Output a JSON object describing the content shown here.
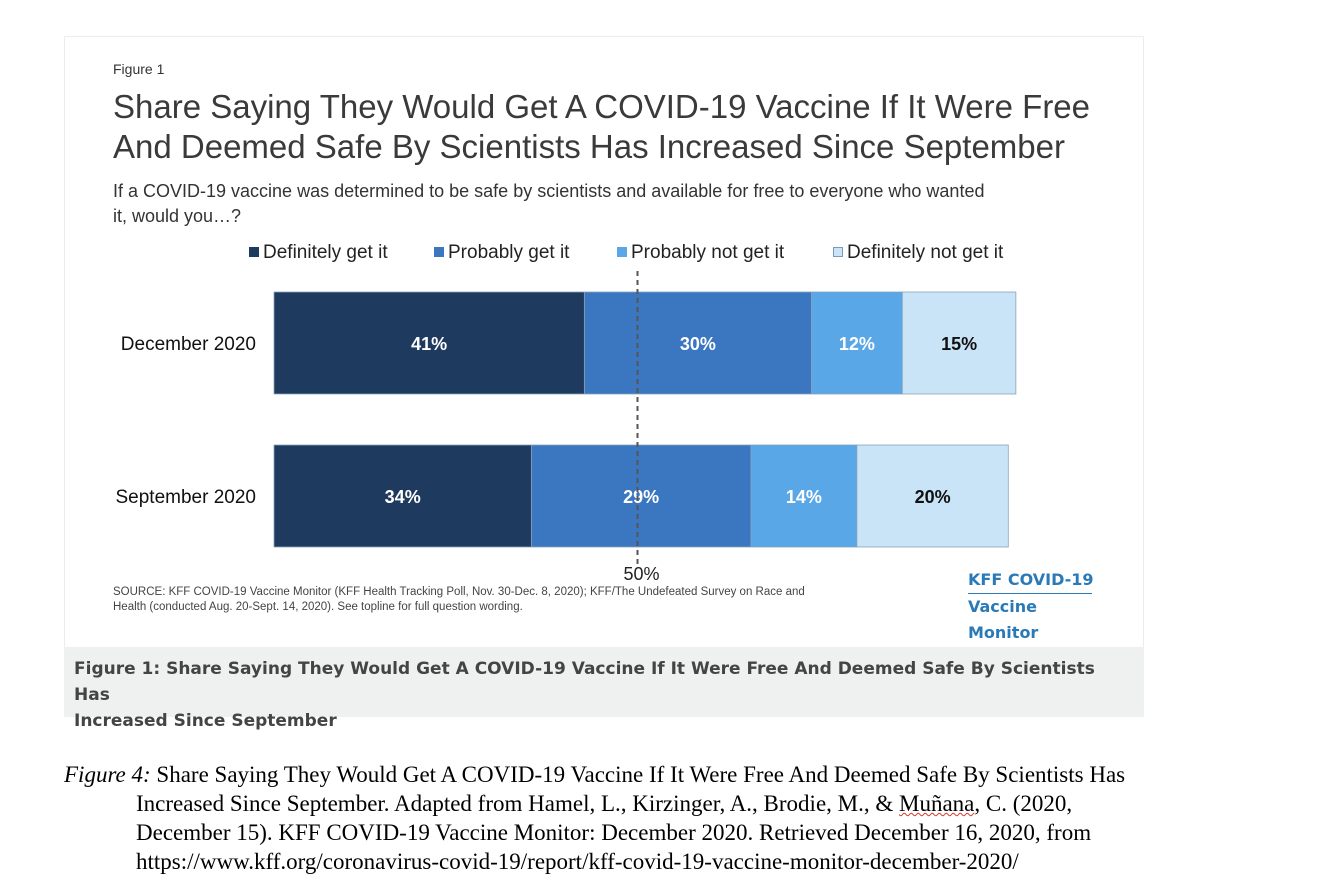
{
  "figure": {
    "label": "Figure 1",
    "title_line1": "Share Saying They Would Get A COVID-19 Vaccine If It Were Free",
    "title_line2": "And Deemed Safe By Scientists Has Increased Since September",
    "subtitle_line1": "If a COVID-19 vaccine was determined to be safe by scientists and available for free to everyone who wanted",
    "subtitle_line2": "it, would you…?",
    "source_line1": "SOURCE: KFF COVID-19 Vaccine Monitor (KFF Health Tracking Poll, Nov. 30-Dec. 8, 2020); KFF/The Undefeated Survey on Race and",
    "source_line2": "Health (conducted Aug. 20-Sept. 14, 2020). See topline for full question wording.",
    "logo_line1": "KFF COVID-19",
    "logo_line2": "Vaccine Monitor"
  },
  "caption": {
    "line1": "Figure 1: Share Saying They Would Get A COVID-19 Vaccine If It Were Free And Deemed Safe By Scientists Has",
    "line2": "Increased Since September"
  },
  "citation": {
    "fig_num": "Figure 4:",
    "line1_rest": " Share Saying They Would Get A COVID-19 Vaccine If It Were Free And Deemed Safe By Scientists Has",
    "line2_a": "Increased Since September. Adapted from Hamel, L., Kirzinger, A., Brodie, M., & ",
    "line2_b": "Muñana",
    "line2_c": ", C. (2020,",
    "line3": "December 15). KFF COVID-19 Vaccine Monitor: December 2020. Retrieved December 16, 2020, from",
    "line4": "https://www.kff.org/coronavirus-covid-19/report/kff-covid-19-vaccine-monitor-december-2020/"
  },
  "chart_data": {
    "type": "bar",
    "orientation": "horizontal",
    "stacked": true,
    "categories": [
      "December 2020",
      "September 2020"
    ],
    "series": [
      {
        "name": "Definitely get it",
        "color": "#1f3a5f",
        "values": [
          41,
          34
        ],
        "labels": [
          "41%",
          "34%"
        ],
        "label_color": "#ffffff"
      },
      {
        "name": "Probably get it",
        "color": "#3b76c1",
        "values": [
          30,
          29
        ],
        "labels": [
          "30%",
          "29%"
        ],
        "label_color": "#ffffff"
      },
      {
        "name": "Probably not get it",
        "color": "#5aa7e8",
        "values": [
          12,
          14
        ],
        "labels": [
          "12%",
          "14%"
        ],
        "label_color": "#ffffff"
      },
      {
        "name": "Definitely not get it",
        "color": "#c9e3f7",
        "values": [
          15,
          20
        ],
        "labels": [
          "15%",
          "20%"
        ],
        "label_color": "#111111"
      }
    ],
    "reference_line": {
      "value": 50,
      "label": "50%",
      "style": "dashed"
    },
    "xlim": [
      0,
      100
    ],
    "legend_position": "top",
    "grid": false
  }
}
